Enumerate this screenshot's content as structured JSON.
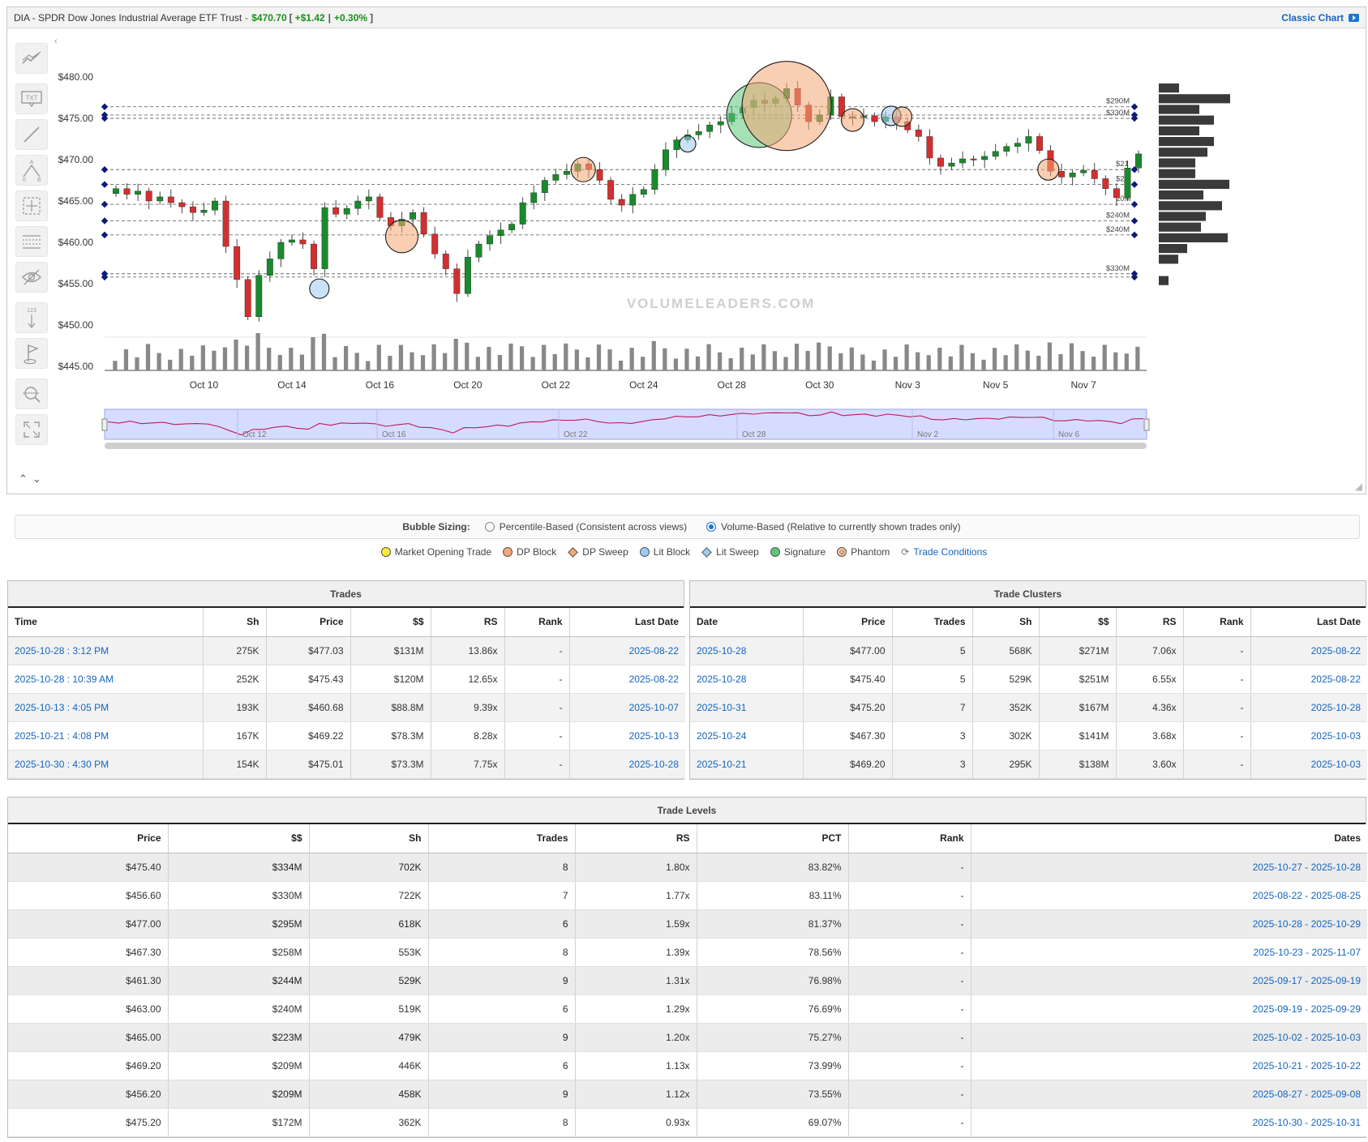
{
  "header": {
    "ticker_name": "DIA - SPDR Dow Jones Industrial Average ETF Trust",
    "sep": "-",
    "price": "$470.70",
    "bracket_open": "[",
    "change": "+$1.42",
    "pipe": "|",
    "change_pct": "+0.30%",
    "bracket_close": "]",
    "classic_chart": "Classic Chart"
  },
  "toolbar": {
    "tools": [
      "trendlines-icon",
      "text-tool-icon",
      "line-tool-icon",
      "fib-pattern-icon",
      "crosshair-select-icon",
      "horizontal-levels-icon",
      "hide-drawings-icon",
      "measure-123-icon",
      "flag-marker-icon",
      "zoom-search-icon",
      "fullscreen-icon"
    ],
    "text_icon_label": "TXT",
    "measure_label": "123",
    "pattern_a": "A",
    "pattern_0": "0",
    "pattern_b": "B",
    "collapse_glyph": "‹",
    "up_glyph": "⌃",
    "down_glyph": "⌄"
  },
  "chart_data": {
    "type": "candlestick",
    "y_ticks": [
      480,
      475,
      470,
      465,
      460,
      455,
      450,
      445
    ],
    "y_tick_labels": [
      "$480.00",
      "$475.00",
      "$470.00",
      "$465.00",
      "$460.00",
      "$455.00",
      "$450.00",
      "$445.00"
    ],
    "ylim": [
      445,
      482
    ],
    "x_labels": [
      "Oct 10",
      "Oct 14",
      "Oct 16",
      "Oct 20",
      "Oct 22",
      "Oct 24",
      "Oct 28",
      "Oct 30",
      "Nov 3",
      "Nov 5",
      "Nov 7"
    ],
    "x_label_index": [
      8,
      16,
      24,
      32,
      40,
      48,
      56,
      64,
      72,
      80,
      88
    ],
    "watermark": "VOLUMELEADERS.COM",
    "closes": [
      466.5,
      465.8,
      466.2,
      465.0,
      465.5,
      464.8,
      464.3,
      463.6,
      463.9,
      465.0,
      459.5,
      455.5,
      451.0,
      456.0,
      458.0,
      460.0,
      460.3,
      459.8,
      456.8,
      464.2,
      463.4,
      464.1,
      465.0,
      465.5,
      463.0,
      462.0,
      462.8,
      463.6,
      461.0,
      458.6,
      456.8,
      453.8,
      458.2,
      459.8,
      460.8,
      461.5,
      462.2,
      464.8,
      466.0,
      467.5,
      468.2,
      468.6,
      469.5,
      468.8,
      467.5,
      465.2,
      464.5,
      465.8,
      466.4,
      468.8,
      471.2,
      472.4,
      473.0,
      473.4,
      474.2,
      474.6,
      475.6,
      476.3,
      477.2,
      476.8,
      477.4,
      478.6,
      476.6,
      474.6,
      475.4,
      477.6,
      475.2,
      475.1,
      475.3,
      474.6,
      475.2,
      474.6,
      473.6,
      472.8,
      470.2,
      469.2,
      469.6,
      470.1,
      470.0,
      470.4,
      471.0,
      471.6,
      472.0,
      472.8,
      471.1,
      468.6,
      467.9,
      468.4,
      468.7,
      467.7,
      466.5,
      465.4,
      469.0,
      470.7
    ],
    "levels": [
      {
        "price": 476.4,
        "label": "$290M"
      },
      {
        "price": 475.0,
        "label": "$330M"
      },
      {
        "price": 475.4,
        "label": ""
      },
      {
        "price": 468.8,
        "label": ""
      },
      {
        "price": 467.0,
        "label": ""
      },
      {
        "price": 464.6,
        "label": ""
      },
      {
        "price": 462.6,
        "label": "$240M"
      },
      {
        "price": 460.9,
        "label": "$240M"
      },
      {
        "price": 456.2,
        "label": "$330M"
      },
      {
        "price": 455.8,
        "label": ""
      }
    ],
    "level_visible_text": [
      "$21",
      "$20",
      "20M"
    ],
    "bubbles": [
      {
        "index": 52.0,
        "price": 471.9,
        "r": 10,
        "kind": "lit-block"
      },
      {
        "index": 18.5,
        "price": 454.4,
        "r": 12,
        "kind": "lit-block"
      },
      {
        "index": 26.0,
        "price": 460.7,
        "r": 20,
        "kind": "dp-block"
      },
      {
        "index": 42.5,
        "price": 468.8,
        "r": 15,
        "kind": "dp-block"
      },
      {
        "index": 58.5,
        "price": 475.4,
        "r": 40,
        "kind": "signature"
      },
      {
        "index": 61.0,
        "price": 476.5,
        "r": 55,
        "kind": "dp-block"
      },
      {
        "index": 67.0,
        "price": 474.8,
        "r": 14,
        "kind": "dp-block"
      },
      {
        "index": 70.5,
        "price": 475.3,
        "r": 12,
        "kind": "lit-block"
      },
      {
        "index": 71.5,
        "price": 475.2,
        "r": 12,
        "kind": "dp-block"
      },
      {
        "index": 84.8,
        "price": 468.8,
        "r": 13,
        "kind": "dp-block"
      }
    ],
    "profile": [
      25,
      88,
      50,
      68,
      50,
      68,
      60,
      45,
      45,
      87,
      55,
      78,
      58,
      52,
      85,
      35,
      24,
      0,
      12
    ],
    "navigator_labels": [
      "Oct 12",
      "Oct 16",
      "Oct 22",
      "Oct 28",
      "Nov 2",
      "Nov 6"
    ]
  },
  "sizing": {
    "label": "Bubble Sizing:",
    "option1": "Percentile-Based (Consistent across views)",
    "option2": "Volume-Based (Relative to currently shown trades only)"
  },
  "legend": {
    "market_open": "Market Opening Trade",
    "dp_block": "DP Block",
    "dp_sweep": "DP Sweep",
    "lit_block": "Lit Block",
    "lit_sweep": "Lit Sweep",
    "signature": "Signature",
    "phantom": "Phantom",
    "phantom_glyph": "☺",
    "trade_conditions": "Trade Conditions",
    "conditions_glyph": "⟳",
    "colors": {
      "market_open": "#ffeb3b",
      "dp_block": "#f4a874",
      "dp_sweep": "#f4a874",
      "lit_block": "#9ecbf0",
      "lit_sweep": "#9ecbf0",
      "signature": "#5cc77a",
      "phantom": "#f4c7a0"
    }
  },
  "trades": {
    "title": "Trades",
    "columns": [
      "Time",
      "Sh",
      "Price",
      "$$",
      "RS",
      "Rank",
      "Last Date"
    ],
    "rows": [
      [
        "2025-10-28 : 3:12 PM",
        "275K",
        "$477.03",
        "$131M",
        "13.86x",
        "-",
        "2025-08-22"
      ],
      [
        "2025-10-28 : 10:39 AM",
        "252K",
        "$475.43",
        "$120M",
        "12.65x",
        "-",
        "2025-08-22"
      ],
      [
        "2025-10-13 : 4:05 PM",
        "193K",
        "$460.68",
        "$88.8M",
        "9.39x",
        "-",
        "2025-10-07"
      ],
      [
        "2025-10-21 : 4:08 PM",
        "167K",
        "$469.22",
        "$78.3M",
        "8.28x",
        "-",
        "2025-10-13"
      ],
      [
        "2025-10-30 : 4:30 PM",
        "154K",
        "$475.01",
        "$73.3M",
        "7.75x",
        "-",
        "2025-10-28"
      ]
    ]
  },
  "clusters": {
    "title": "Trade Clusters",
    "columns": [
      "Date",
      "Price",
      "Trades",
      "Sh",
      "$$",
      "RS",
      "Rank",
      "Last Date"
    ],
    "rows": [
      [
        "2025-10-28",
        "$477.00",
        "5",
        "568K",
        "$271M",
        "7.06x",
        "-",
        "2025-08-22"
      ],
      [
        "2025-10-28",
        "$475.40",
        "5",
        "529K",
        "$251M",
        "6.55x",
        "-",
        "2025-08-22"
      ],
      [
        "2025-10-31",
        "$475.20",
        "7",
        "352K",
        "$167M",
        "4.36x",
        "-",
        "2025-10-28"
      ],
      [
        "2025-10-24",
        "$467.30",
        "3",
        "302K",
        "$141M",
        "3.68x",
        "-",
        "2025-10-03"
      ],
      [
        "2025-10-21",
        "$469.20",
        "3",
        "295K",
        "$138M",
        "3.60x",
        "-",
        "2025-10-03"
      ]
    ]
  },
  "levels": {
    "title": "Trade Levels",
    "columns": [
      "Price",
      "$$",
      "Sh",
      "Trades",
      "RS",
      "PCT",
      "Rank",
      "Dates"
    ],
    "rows": [
      [
        "$475.40",
        "$334M",
        "702K",
        "8",
        "1.80x",
        "83.82%",
        "-",
        "2025-10-27 - 2025-10-28"
      ],
      [
        "$456.60",
        "$330M",
        "722K",
        "7",
        "1.77x",
        "83.11%",
        "-",
        "2025-08-22 - 2025-08-25"
      ],
      [
        "$477.00",
        "$295M",
        "618K",
        "6",
        "1.59x",
        "81.37%",
        "-",
        "2025-10-28 - 2025-10-29"
      ],
      [
        "$467.30",
        "$258M",
        "553K",
        "8",
        "1.39x",
        "78.56%",
        "-",
        "2025-10-23 - 2025-11-07"
      ],
      [
        "$461.30",
        "$244M",
        "529K",
        "9",
        "1.31x",
        "76.98%",
        "-",
        "2025-09-17 - 2025-09-19"
      ],
      [
        "$463.00",
        "$240M",
        "519K",
        "6",
        "1.29x",
        "76.69%",
        "-",
        "2025-09-19 - 2025-09-29"
      ],
      [
        "$465.00",
        "$223M",
        "479K",
        "9",
        "1.20x",
        "75.27%",
        "-",
        "2025-10-02 - 2025-10-03"
      ],
      [
        "$469.20",
        "$209M",
        "446K",
        "6",
        "1.13x",
        "73.99%",
        "-",
        "2025-10-21 - 2025-10-22"
      ],
      [
        "$456.20",
        "$209M",
        "458K",
        "9",
        "1.12x",
        "73.55%",
        "-",
        "2025-08-27 - 2025-09-08"
      ],
      [
        "$475.20",
        "$172M",
        "362K",
        "8",
        "0.93x",
        "69.07%",
        "-",
        "2025-10-30 - 2025-10-31"
      ]
    ]
  }
}
